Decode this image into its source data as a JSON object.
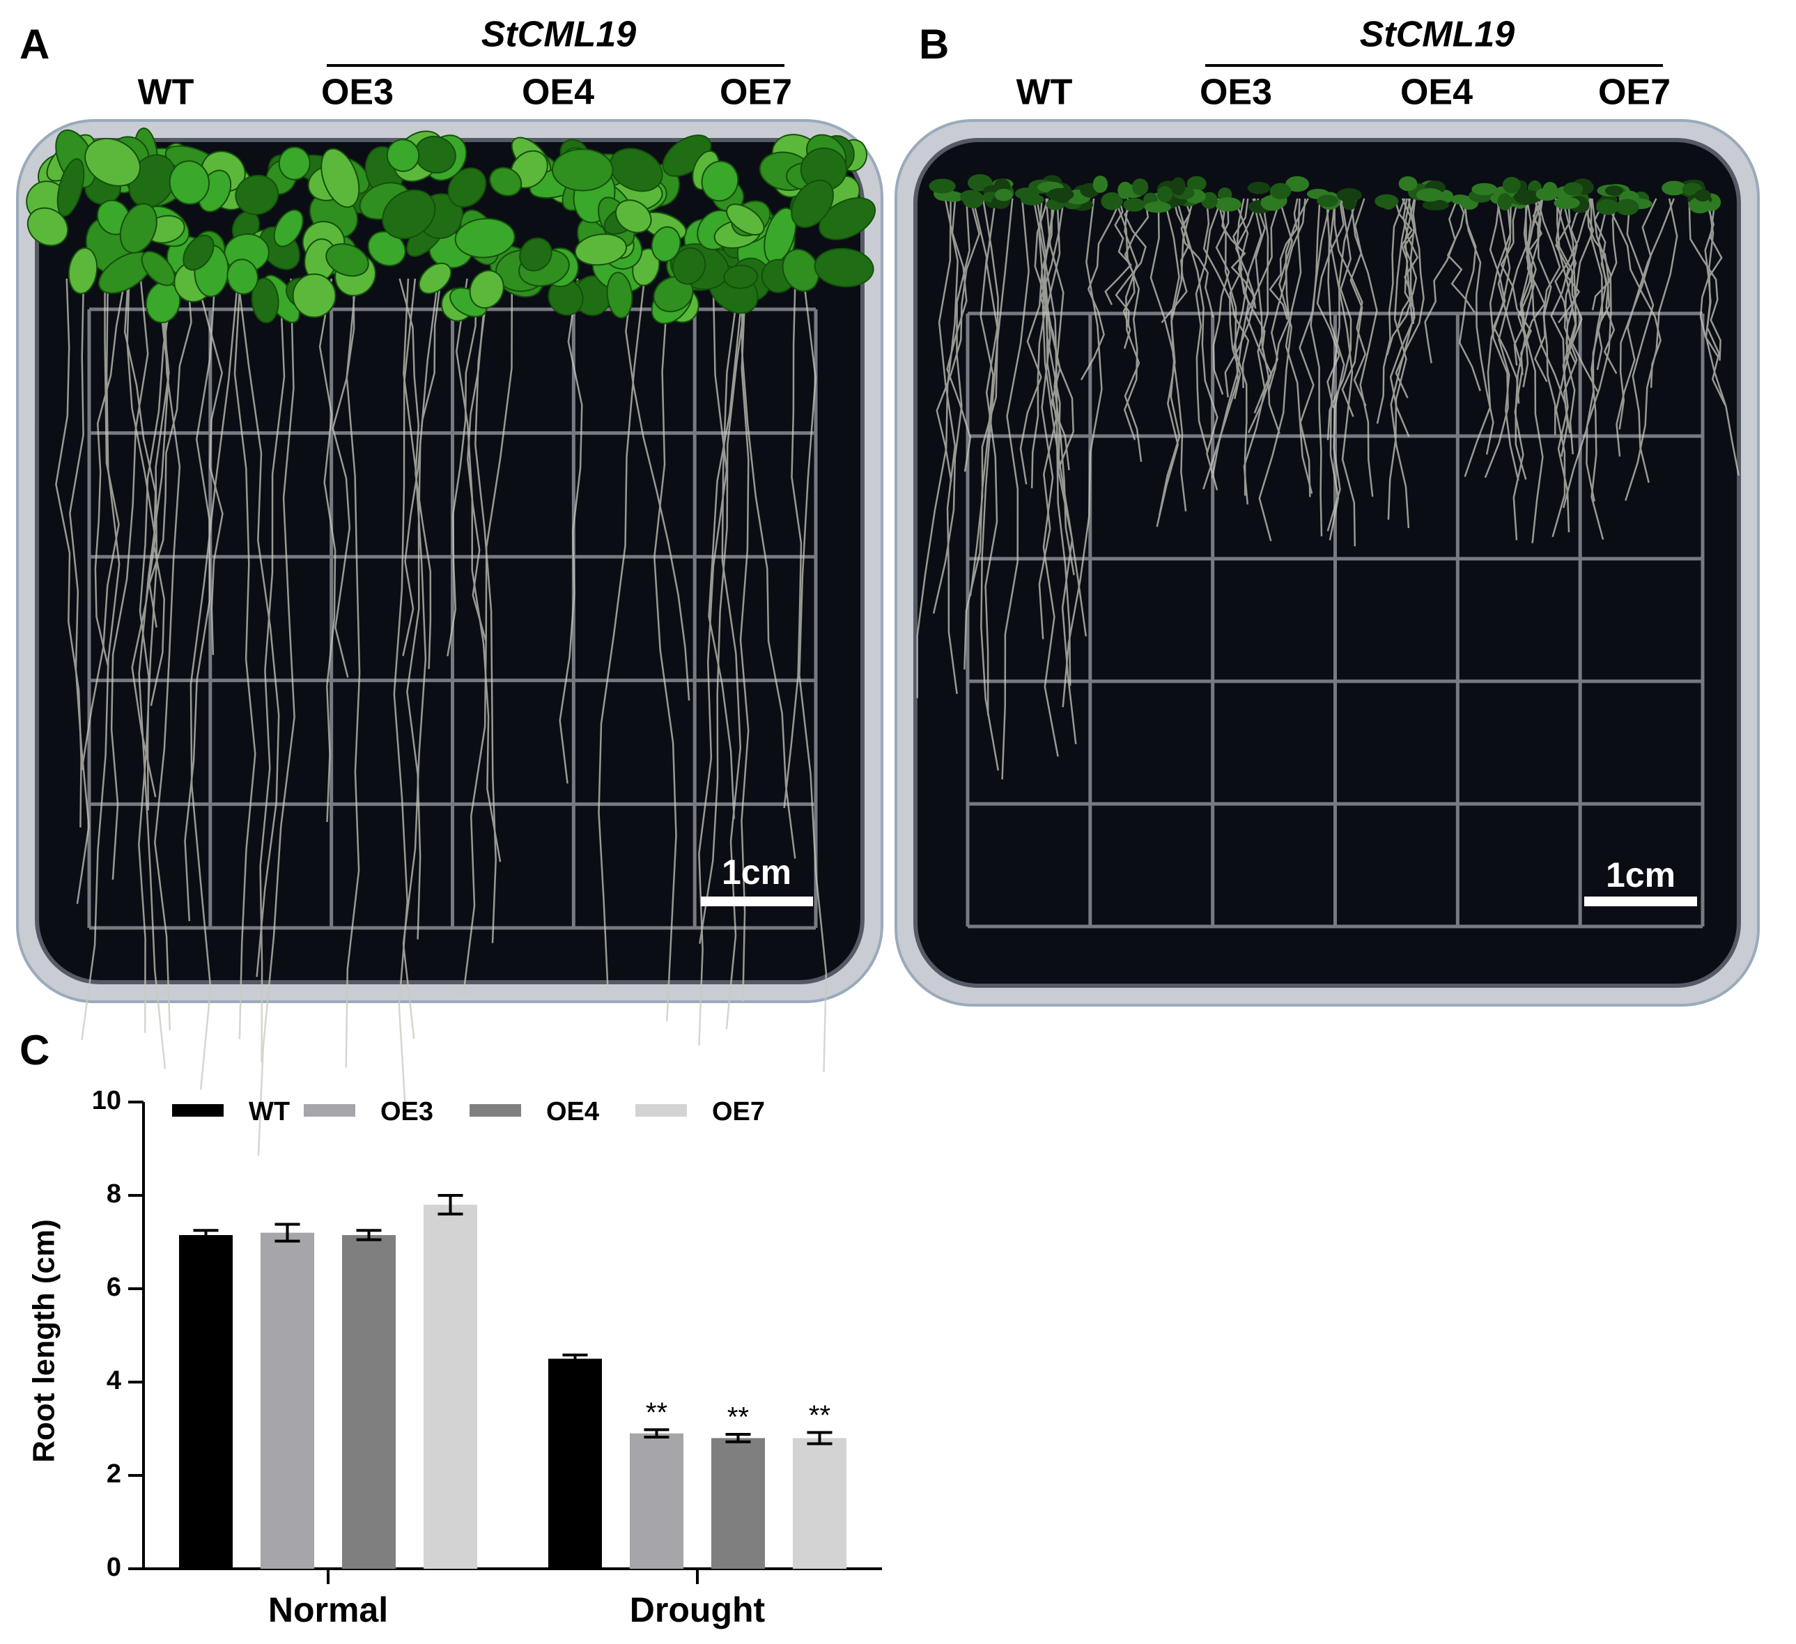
{
  "panels": [
    {
      "label": "A",
      "gene": "StCML19",
      "columns": [
        "WT",
        "OE3",
        "OE4",
        "OE7"
      ],
      "scale_bar": "1cm"
    },
    {
      "label": "B",
      "gene": "StCML19",
      "columns": [
        "WT",
        "OE3",
        "OE4",
        "OE7"
      ],
      "scale_bar": "1cm"
    }
  ],
  "chart_data": {
    "type": "bar",
    "panel_label": "C",
    "ylabel": "Root length (cm)",
    "categories": [
      "Normal",
      "Drought"
    ],
    "series": [
      {
        "name": "WT",
        "color": "#000000",
        "values": [
          7.15,
          4.5
        ],
        "errors": [
          0.1,
          0.08
        ],
        "labels": [
          null,
          null
        ]
      },
      {
        "name": "OE3",
        "color": "#a5a5aa",
        "values": [
          7.2,
          2.9
        ],
        "errors": [
          0.18,
          0.08
        ],
        "labels": [
          null,
          "**"
        ]
      },
      {
        "name": "OE4",
        "color": "#7f7f7f",
        "values": [
          7.15,
          2.8
        ],
        "errors": [
          0.1,
          0.08
        ],
        "labels": [
          null,
          "**"
        ]
      },
      {
        "name": "OE7",
        "color": "#d3d3d3",
        "values": [
          7.8,
          2.8
        ],
        "errors": [
          0.2,
          0.12
        ],
        "labels": [
          null,
          "**"
        ]
      }
    ],
    "ylim": [
      0,
      10
    ],
    "yticks": [
      0,
      2,
      4,
      6,
      8,
      10
    ]
  }
}
